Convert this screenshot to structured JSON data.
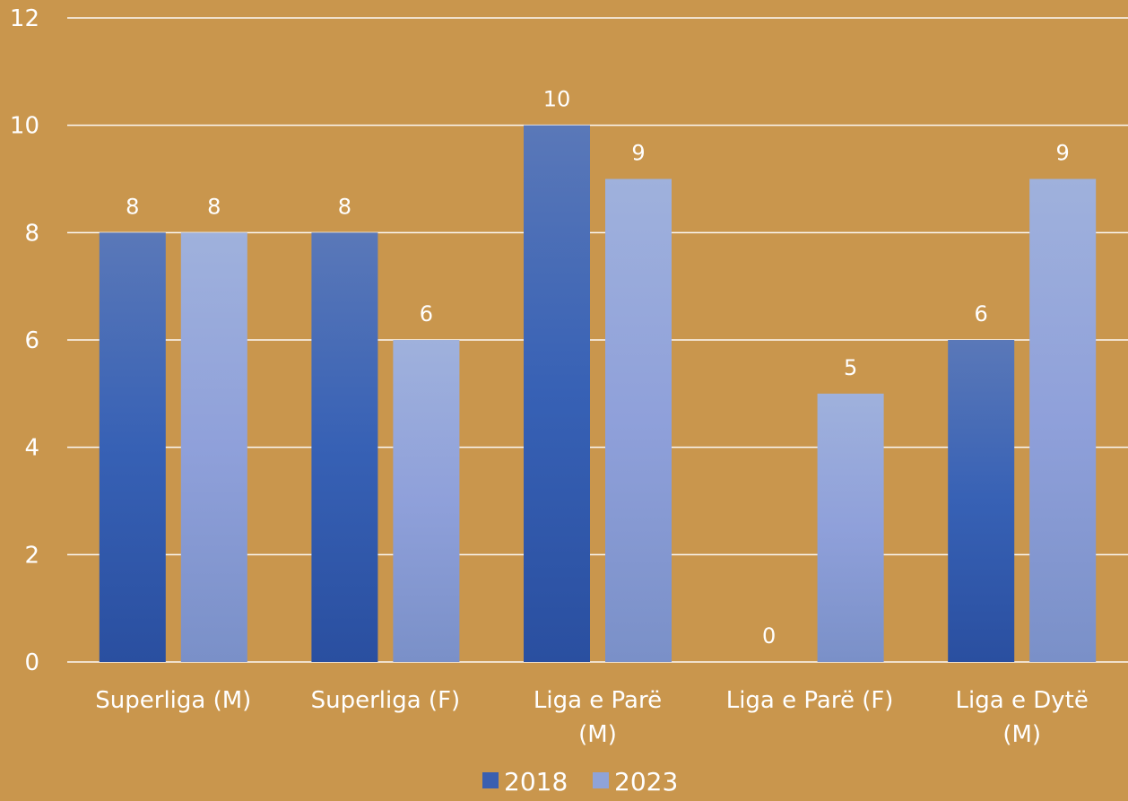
{
  "chart_data": {
    "type": "bar",
    "categories": [
      [
        "Superliga (M)"
      ],
      [
        "Superliga (F)"
      ],
      [
        "Liga e Parë",
        "(M)"
      ],
      [
        "Liga e Parë (F)"
      ],
      [
        "Liga e Dytë",
        "(M)"
      ]
    ],
    "series": [
      {
        "name": "2018",
        "values": [
          8,
          8,
          10,
          0,
          6
        ],
        "color": "#3a5fb0"
      },
      {
        "name": "2023",
        "values": [
          8,
          6,
          9,
          5,
          9
        ],
        "color": "#8fa3d8"
      }
    ],
    "y_ticks": [
      "0",
      "2",
      "4",
      "6",
      "8",
      "10",
      "12"
    ],
    "ylim": [
      0,
      12
    ],
    "grid": true,
    "legend_position": "bottom",
    "background_color": "#c9964d",
    "data_labels": true
  }
}
